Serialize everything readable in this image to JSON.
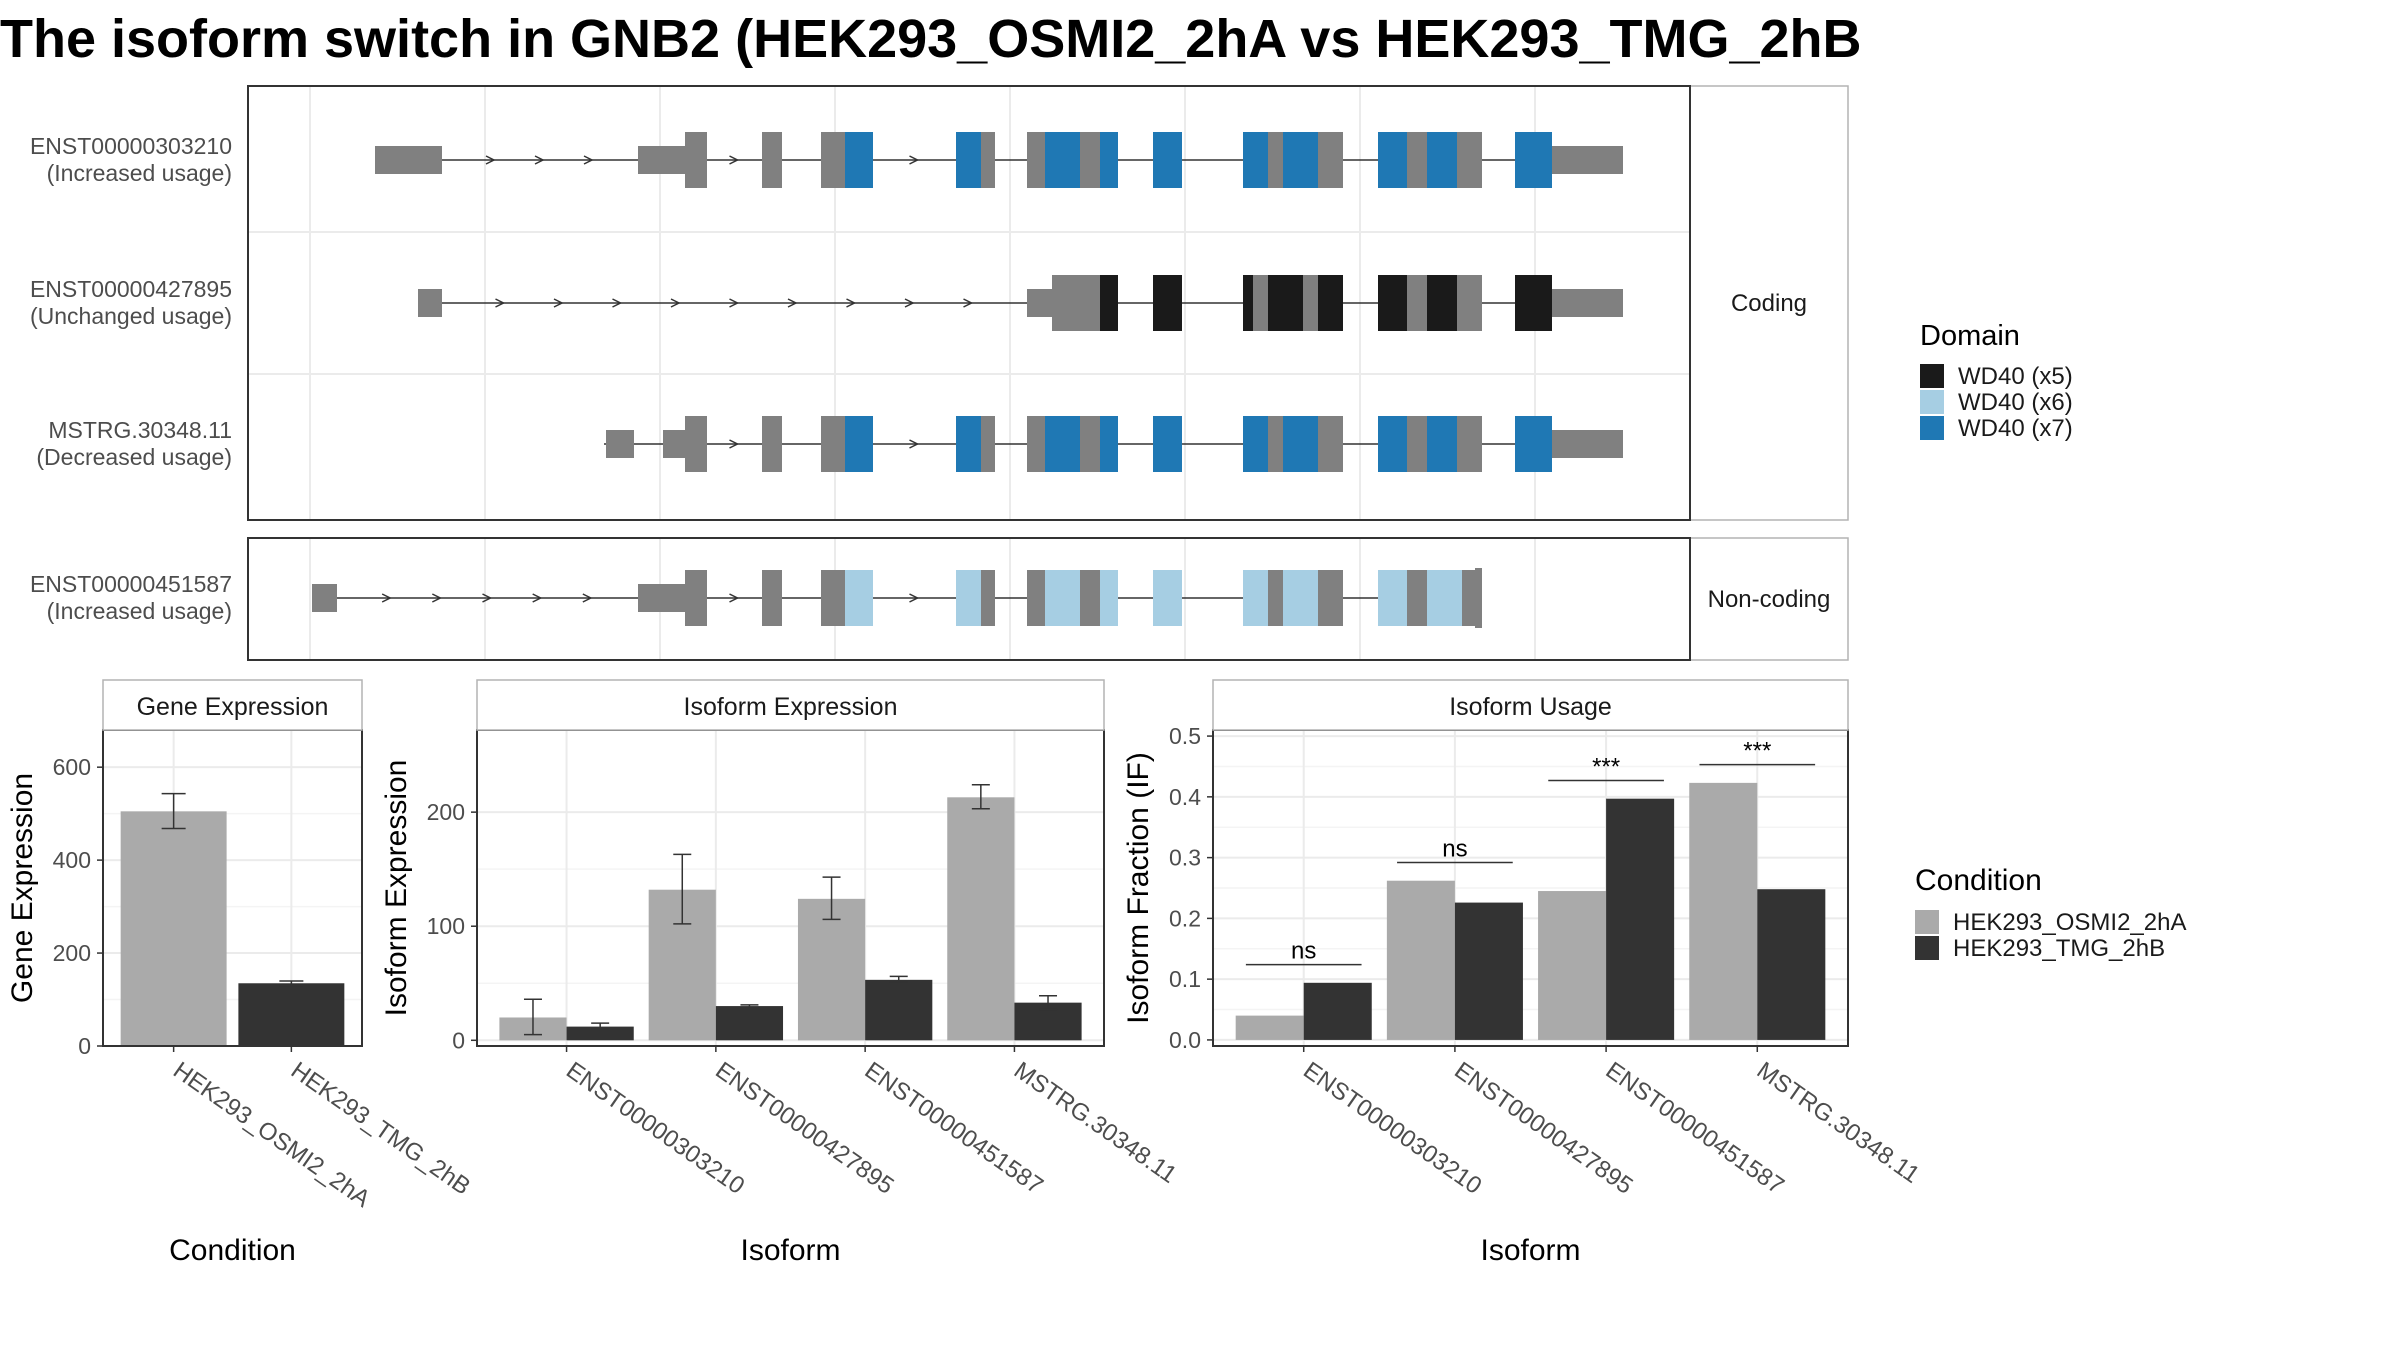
{
  "title": "The isoform switch in GNB2 (HEK293_OSMI2_2hA vs HEK293_TMG_2hB",
  "structure": {
    "groups": [
      {
        "label": "Coding",
        "transcripts": [
          {
            "id": "ENST00000303210",
            "usage": "(Increased usage)"
          },
          {
            "id": "ENST00000427895",
            "usage": "(Unchanged usage)"
          },
          {
            "id": "MSTRG.30348.11",
            "usage": "(Decreased usage)"
          }
        ]
      },
      {
        "label": "Non-coding",
        "transcripts": [
          {
            "id": "ENST00000451587",
            "usage": "(Increased usage)"
          }
        ]
      }
    ],
    "domain_legend": {
      "title": "Domain",
      "items": [
        {
          "label": "WD40 (x5)",
          "color": "#1a1a1a"
        },
        {
          "label": "WD40 (x6)",
          "color": "#a6cee3"
        },
        {
          "label": "WD40 (x7)",
          "color": "#1f78b4"
        }
      ]
    },
    "exon_color": "#808080"
  },
  "chart_data": [
    {
      "type": "bar",
      "title": "Gene Expression",
      "xlabel": "Condition",
      "ylabel": "Gene Expression",
      "categories": [
        "HEK293_OSMI2_2hA",
        "HEK293_TMG_2hB"
      ],
      "values": [
        505,
        135
      ],
      "errors": [
        [
          468,
          543
        ],
        [
          130,
          140
        ]
      ],
      "colors": [
        "#aaaaaa",
        "#333333"
      ],
      "ylim": [
        0,
        680
      ],
      "yticks": [
        0,
        200,
        400,
        600
      ]
    },
    {
      "type": "bar",
      "title": "Isoform Expression",
      "xlabel": "Isoform",
      "ylabel": "Isoform Expression",
      "categories": [
        "ENST00000303210",
        "ENST00000427895",
        "ENST00000451587",
        "MSTRG.30348.11"
      ],
      "series": [
        {
          "name": "HEK293_OSMI2_2hA",
          "values": [
            20,
            132,
            124,
            213
          ],
          "errors": [
            [
              5,
              36
            ],
            [
              102,
              163
            ],
            [
              106,
              143
            ],
            [
              203,
              224
            ]
          ]
        },
        {
          "name": "HEK293_TMG_2hB",
          "values": [
            12,
            30,
            53,
            33
          ],
          "errors": [
            [
              10,
              15
            ],
            [
              29,
              31
            ],
            [
              51,
              56
            ],
            [
              27,
              39
            ]
          ]
        }
      ],
      "ylim": [
        -5,
        272
      ],
      "yticks": [
        0,
        100,
        200
      ]
    },
    {
      "type": "bar",
      "title": "Isoform Usage",
      "xlabel": "Isoform",
      "ylabel": "Isoform Fraction (IF)",
      "categories": [
        "ENST00000303210",
        "ENST00000427895",
        "ENST00000451587",
        "MSTRG.30348.11"
      ],
      "series": [
        {
          "name": "HEK293_OSMI2_2hA",
          "values": [
            0.04,
            0.262,
            0.245,
            0.423
          ]
        },
        {
          "name": "HEK293_TMG_2hB",
          "values": [
            0.094,
            0.226,
            0.397,
            0.248
          ]
        }
      ],
      "significance": [
        "ns",
        "ns",
        "***",
        "***"
      ],
      "ylim": [
        -0.01,
        0.51
      ],
      "yticks": [
        0.0,
        0.1,
        0.2,
        0.3,
        0.4,
        0.5
      ],
      "ytick_labels": [
        "0.0",
        "0.1",
        "0.2",
        "0.3",
        "0.4",
        "0.5"
      ]
    }
  ],
  "condition_legend": {
    "title": "Condition",
    "items": [
      {
        "label": "HEK293_OSMI2_2hA",
        "color": "#aaaaaa"
      },
      {
        "label": "HEK293_TMG_2hB",
        "color": "#333333"
      }
    ]
  }
}
